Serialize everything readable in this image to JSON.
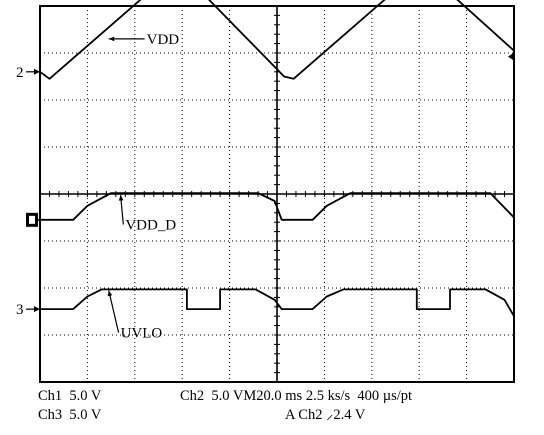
{
  "chart_data": {
    "type": "line",
    "title": "",
    "grid": true,
    "x_divisions": 10,
    "y_divisions": 8,
    "traces": [
      {
        "name": "VDD",
        "label": "VDD",
        "marker": "2",
        "x": [
          0,
          0.2,
          2.9,
          5.15,
          5.35,
          8.05,
          10
        ],
        "y": [
          6.6,
          6.45,
          8.82,
          6.5,
          6.45,
          8.82,
          7.05
        ]
      },
      {
        "name": "VDD_D",
        "label": "VDD_D",
        "marker": "",
        "x": [
          0,
          0.7,
          1.0,
          1.5,
          4.6,
          4.95,
          5.1,
          5.75,
          6.05,
          6.55,
          9.5,
          10
        ],
        "y": [
          3.45,
          3.45,
          3.75,
          4.02,
          4.02,
          3.85,
          3.45,
          3.45,
          3.75,
          4.02,
          4.02,
          3.5
        ]
      },
      {
        "name": "UVLO",
        "label": "UVLO",
        "marker": "3",
        "x": [
          0,
          0.7,
          1.0,
          1.3,
          3.1,
          3.1,
          3.8,
          3.8,
          4.2,
          4.55,
          4.95,
          5.1,
          5.75,
          6.05,
          6.4,
          7.95,
          7.95,
          8.65,
          8.65,
          9.05,
          9.4,
          9.8,
          10
        ],
        "y": [
          1.55,
          1.55,
          1.82,
          1.97,
          1.97,
          1.55,
          1.55,
          1.97,
          1.97,
          1.97,
          1.75,
          1.55,
          1.55,
          1.82,
          1.97,
          1.97,
          1.55,
          1.55,
          1.97,
          1.97,
          1.97,
          1.75,
          1.4
        ]
      }
    ]
  },
  "status": {
    "ch1": "Ch1  5.0 V",
    "ch2": "Ch2  5.0 VM20.0 ms 2.5 ks/s  400 µs/pt",
    "ch3": "Ch3  5.0 V",
    "trigger": "A Ch2 ⸝2.4 V"
  }
}
